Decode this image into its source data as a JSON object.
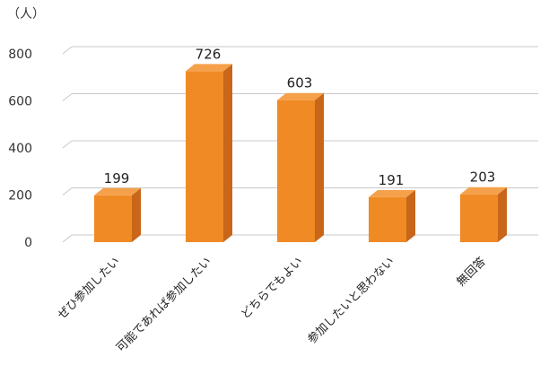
{
  "chart_data": {
    "type": "bar",
    "title": "",
    "xlabel": "",
    "ylabel": "",
    "unit": "（人）",
    "categories": [
      "ぜひ参加したい",
      "可能であれば参加したい",
      "どちらでもよい",
      "参加したいと思わない",
      "無回答"
    ],
    "values": [
      199,
      726,
      603,
      191,
      203
    ],
    "ylim": [
      0,
      800
    ],
    "yticks": [
      "0",
      "200",
      "400",
      "600",
      "800"
    ],
    "grid": true,
    "legend": "none",
    "bar_color": "#F08A24",
    "bar_side_color": "#C8661A",
    "bar_top_color": "#F5A04A",
    "three_d": true
  }
}
